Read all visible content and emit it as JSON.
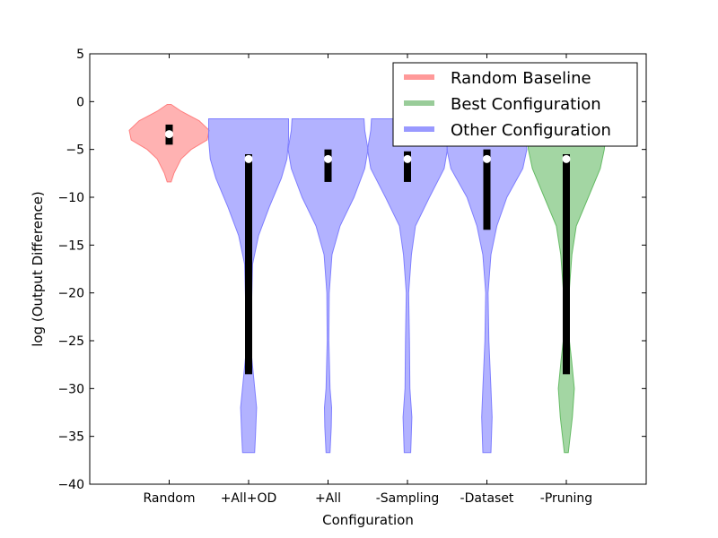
{
  "chart_data": {
    "type": "violin",
    "title": "",
    "xlabel": "Configuration",
    "ylabel": "log (Output Difference)",
    "ylim": [
      -40,
      5
    ],
    "yticks": [
      5,
      0,
      -5,
      -10,
      -15,
      -20,
      -25,
      -30,
      -35,
      -40
    ],
    "ytick_labels": [
      "5",
      "0",
      "−5",
      "−10",
      "−15",
      "−20",
      "−25",
      "−30",
      "−35",
      "−40"
    ],
    "categories": [
      "Random",
      "+All+OD",
      "+All",
      "-Sampling",
      "-Dataset",
      "-Pruning"
    ],
    "colors": {
      "red": "#ff7f7f",
      "green": "#66bb66",
      "blue": "#7f7fff"
    },
    "legend": {
      "placement": "top-right",
      "entries": [
        {
          "label": "Random Baseline",
          "color": "#ff9999"
        },
        {
          "label": "Best Configuration",
          "color": "#99cc99"
        },
        {
          "label": "Other Configuration",
          "color": "#9999ff"
        }
      ]
    },
    "violins": [
      {
        "category": "Random",
        "color": "red",
        "min": -8.4,
        "max": -0.3,
        "median": -3.4,
        "q1": -4.5,
        "q3": -2.4,
        "profile": [
          [
            -8.4,
            0.05
          ],
          [
            -7.5,
            0.12
          ],
          [
            -6,
            0.3
          ],
          [
            -5,
            0.55
          ],
          [
            -4,
            0.95
          ],
          [
            -3,
            1.0
          ],
          [
            -2,
            0.75
          ],
          [
            -1,
            0.3
          ],
          [
            -0.3,
            0.05
          ]
        ]
      },
      {
        "category": "+All+OD",
        "color": "blue",
        "min": -36.7,
        "max": -1.8,
        "median": -6.0,
        "q1": -28.5,
        "q3": -5.5,
        "profile": [
          [
            -36.7,
            0.15
          ],
          [
            -35,
            0.17
          ],
          [
            -32,
            0.2
          ],
          [
            -29,
            0.13
          ],
          [
            -26,
            0.06
          ],
          [
            -22,
            0.07
          ],
          [
            -17,
            0.1
          ],
          [
            -14,
            0.25
          ],
          [
            -11,
            0.52
          ],
          [
            -8,
            0.82
          ],
          [
            -6,
            0.96
          ],
          [
            -4,
            1.0
          ],
          [
            -2,
            1.0
          ],
          [
            -1.8,
            1.0
          ]
        ]
      },
      {
        "category": "+All",
        "color": "blue",
        "min": -36.7,
        "max": -1.8,
        "median": -6.0,
        "q1": -8.4,
        "q3": -5.0,
        "profile": [
          [
            -36.7,
            0.05
          ],
          [
            -34,
            0.08
          ],
          [
            -32,
            0.09
          ],
          [
            -30,
            0.05
          ],
          [
            -25,
            0.02
          ],
          [
            -20,
            0.03
          ],
          [
            -16,
            0.1
          ],
          [
            -13,
            0.3
          ],
          [
            -10,
            0.65
          ],
          [
            -7,
            0.92
          ],
          [
            -5,
            1.0
          ],
          [
            -3,
            0.92
          ],
          [
            -1.8,
            0.9
          ]
        ]
      },
      {
        "category": "-Sampling",
        "color": "blue",
        "min": -36.7,
        "max": -1.8,
        "median": -6.0,
        "q1": -8.4,
        "q3": -5.2,
        "profile": [
          [
            -36.7,
            0.08
          ],
          [
            -33,
            0.11
          ],
          [
            -30,
            0.06
          ],
          [
            -25,
            0.05
          ],
          [
            -20,
            0.03
          ],
          [
            -16,
            0.1
          ],
          [
            -13,
            0.2
          ],
          [
            -10,
            0.55
          ],
          [
            -7,
            0.92
          ],
          [
            -5,
            1.0
          ],
          [
            -3,
            0.92
          ],
          [
            -1.8,
            0.9
          ]
        ]
      },
      {
        "category": "-Dataset",
        "color": "blue",
        "min": -36.7,
        "max": -1.8,
        "median": -6.0,
        "q1": -13.4,
        "q3": -5.0,
        "profile": [
          [
            -36.7,
            0.1
          ],
          [
            -33,
            0.13
          ],
          [
            -30,
            0.1
          ],
          [
            -25,
            0.05
          ],
          [
            -20,
            0.03
          ],
          [
            -16,
            0.1
          ],
          [
            -13,
            0.25
          ],
          [
            -10,
            0.5
          ],
          [
            -7,
            0.9
          ],
          [
            -5,
            1.0
          ],
          [
            -3,
            0.95
          ],
          [
            -1.8,
            0.95
          ]
        ]
      },
      {
        "category": "-Pruning",
        "color": "green",
        "min": -36.7,
        "max": -2.0,
        "median": -6.0,
        "q1": -28.5,
        "q3": -5.5,
        "profile": [
          [
            -36.7,
            0.05
          ],
          [
            -33,
            0.15
          ],
          [
            -30,
            0.2
          ],
          [
            -27,
            0.13
          ],
          [
            -24,
            0.05
          ],
          [
            -20,
            0.07
          ],
          [
            -16,
            0.14
          ],
          [
            -13,
            0.25
          ],
          [
            -10,
            0.55
          ],
          [
            -7,
            0.85
          ],
          [
            -5,
            0.95
          ],
          [
            -3,
            1.0
          ],
          [
            -2,
            1.0
          ]
        ]
      }
    ]
  }
}
